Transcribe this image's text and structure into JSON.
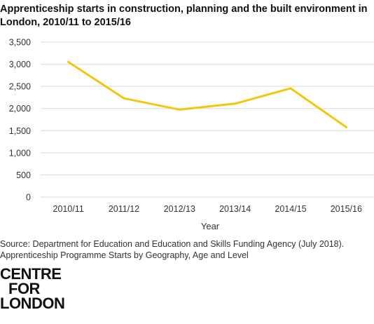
{
  "chart_data": {
    "type": "line",
    "title_lines": [
      "Apprenticeship starts in construction, planning and the built environment in",
      "London, 2010/11 to 2015/16"
    ],
    "categories": [
      "2010/11",
      "2011/12",
      "2012/13",
      "2013/14",
      "2014/15",
      "2015/16"
    ],
    "series": [
      {
        "values": [
          3050,
          2230,
          1975,
          2110,
          2455,
          1580
        ]
      }
    ],
    "xlabel": "Year",
    "ylabel": "",
    "ylim": [
      0,
      3500
    ],
    "yticks": [
      "0",
      "500",
      "1,000",
      "1,500",
      "2,000",
      "2,500",
      "3,000",
      "3,500"
    ],
    "grid": "horizontal",
    "line_color": "#f2c80f",
    "grid_color": "#d9d9d9"
  },
  "source_lines": [
    "Source: Department for Education and Education and Skills Funding Agency (July 2018).",
    "Apprenticeship Programme Starts by Geography, Age and Level"
  ],
  "logo_lines": [
    "CENTRE",
    "FOR",
    "LONDON"
  ]
}
